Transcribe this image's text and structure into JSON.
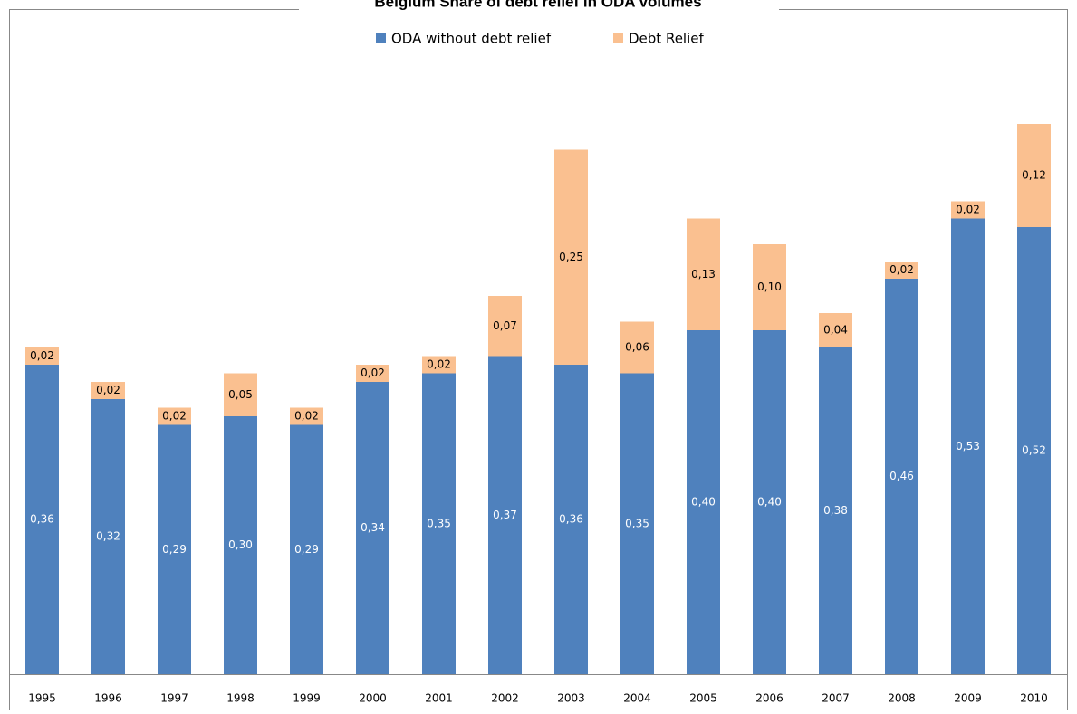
{
  "chart_data": {
    "type": "stacked_bar",
    "title": "Belgium Share of debt relief in ODA volumes",
    "categories": [
      "1995",
      "1996",
      "1997",
      "1998",
      "1999",
      "2000",
      "2001",
      "2002",
      "2003",
      "2004",
      "2005",
      "2006",
      "2007",
      "2008",
      "2009",
      "2010"
    ],
    "series": [
      {
        "name": "ODA without debt relief",
        "color": "#4f81bd",
        "values": [
          0.36,
          0.32,
          0.29,
          0.3,
          0.29,
          0.34,
          0.35,
          0.37,
          0.36,
          0.35,
          0.4,
          0.4,
          0.38,
          0.46,
          0.53,
          0.52
        ],
        "value_labels": [
          "0,36",
          "0,32",
          "0,29",
          "0,30",
          "0,29",
          "0,34",
          "0,35",
          "0,37",
          "0,36",
          "0,35",
          "0,40",
          "0,40",
          "0,38",
          "0,46",
          "0,53",
          "0,52"
        ]
      },
      {
        "name": "Debt Relief",
        "color": "#fac090",
        "values": [
          0.02,
          0.02,
          0.02,
          0.05,
          0.02,
          0.02,
          0.02,
          0.07,
          0.25,
          0.06,
          0.13,
          0.1,
          0.04,
          0.02,
          0.02,
          0.12
        ],
        "value_labels": [
          "0,02",
          "0,02",
          "0,02",
          "0,05",
          "0,02",
          "0,02",
          "0,02",
          "0,07",
          "0,25",
          "0,06",
          "0,13",
          "0,10",
          "0,04",
          "0,02",
          "0,02",
          "0,12"
        ]
      }
    ],
    "ylim": [
      0,
      0.7
    ],
    "legend": "top"
  }
}
